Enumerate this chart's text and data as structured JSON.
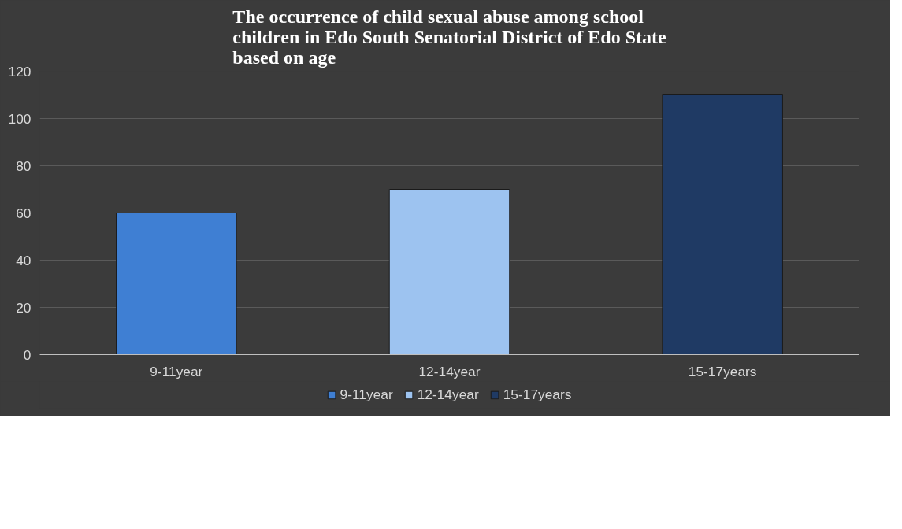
{
  "chart_data": {
    "type": "bar",
    "title": "The occurrence of child sexual abuse among school children in Edo South Senatorial District of Edo State based on age",
    "categories": [
      "9-11year",
      "12-14year",
      "15-17years"
    ],
    "series": [
      {
        "name": "9-11year",
        "color": "#3f7fd3",
        "values": [
          60,
          null,
          null
        ]
      },
      {
        "name": "12-14year",
        "color": "#9dc3f0",
        "values": [
          null,
          70,
          null
        ]
      },
      {
        "name": "15-17years",
        "color": "#1f3a64",
        "values": [
          null,
          null,
          110
        ]
      }
    ],
    "ylim": [
      0,
      120
    ],
    "yticks": [
      0,
      20,
      40,
      60,
      80,
      100,
      120
    ],
    "grid": "y",
    "legend": "bottom"
  }
}
